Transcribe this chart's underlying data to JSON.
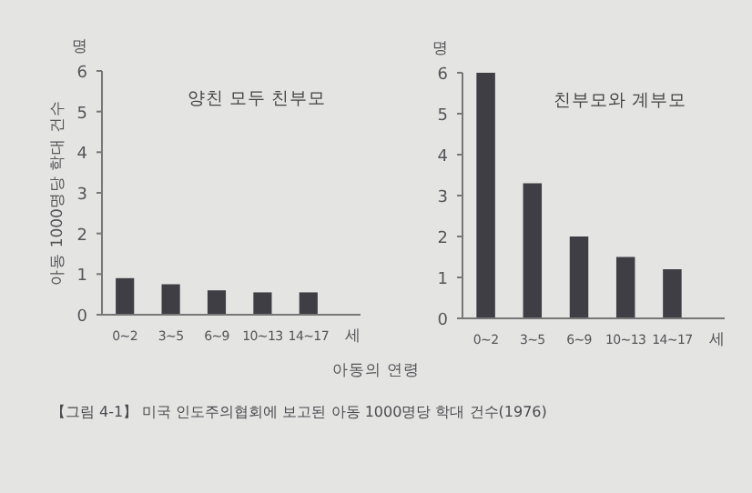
{
  "chart_data": [
    {
      "type": "bar",
      "title": "양친 모두 친부모",
      "ylabel": "아동 1000명당 학대 건수",
      "xlabel": "아동의 연령",
      "categories": [
        "0~2",
        "3~5",
        "6~9",
        "10~13",
        "14~17"
      ],
      "values": [
        0.9,
        0.75,
        0.6,
        0.55,
        0.55
      ],
      "color": "#3e3e44",
      "ylim": [
        0,
        6
      ],
      "yticks": [
        0,
        1,
        2,
        3,
        4,
        5,
        6
      ],
      "annotations": [
        "명",
        "세"
      ]
    },
    {
      "type": "bar",
      "title": "친부모와 계부모",
      "categories": [
        "0~2",
        "3~5",
        "6~9",
        "10~13",
        "14~17"
      ],
      "values": [
        6,
        3.3,
        2,
        1.5,
        1.2
      ],
      "color": "#3e3e44",
      "ylim": [
        0,
        6
      ],
      "yticks": [
        0,
        1,
        2,
        3,
        4,
        5,
        6
      ],
      "annotations": [
        "명",
        "세",
        "【그림 4-1】 미국 인도주의협회에 보고된 아동 1000명당 학대 건수(1976)"
      ]
    }
  ]
}
